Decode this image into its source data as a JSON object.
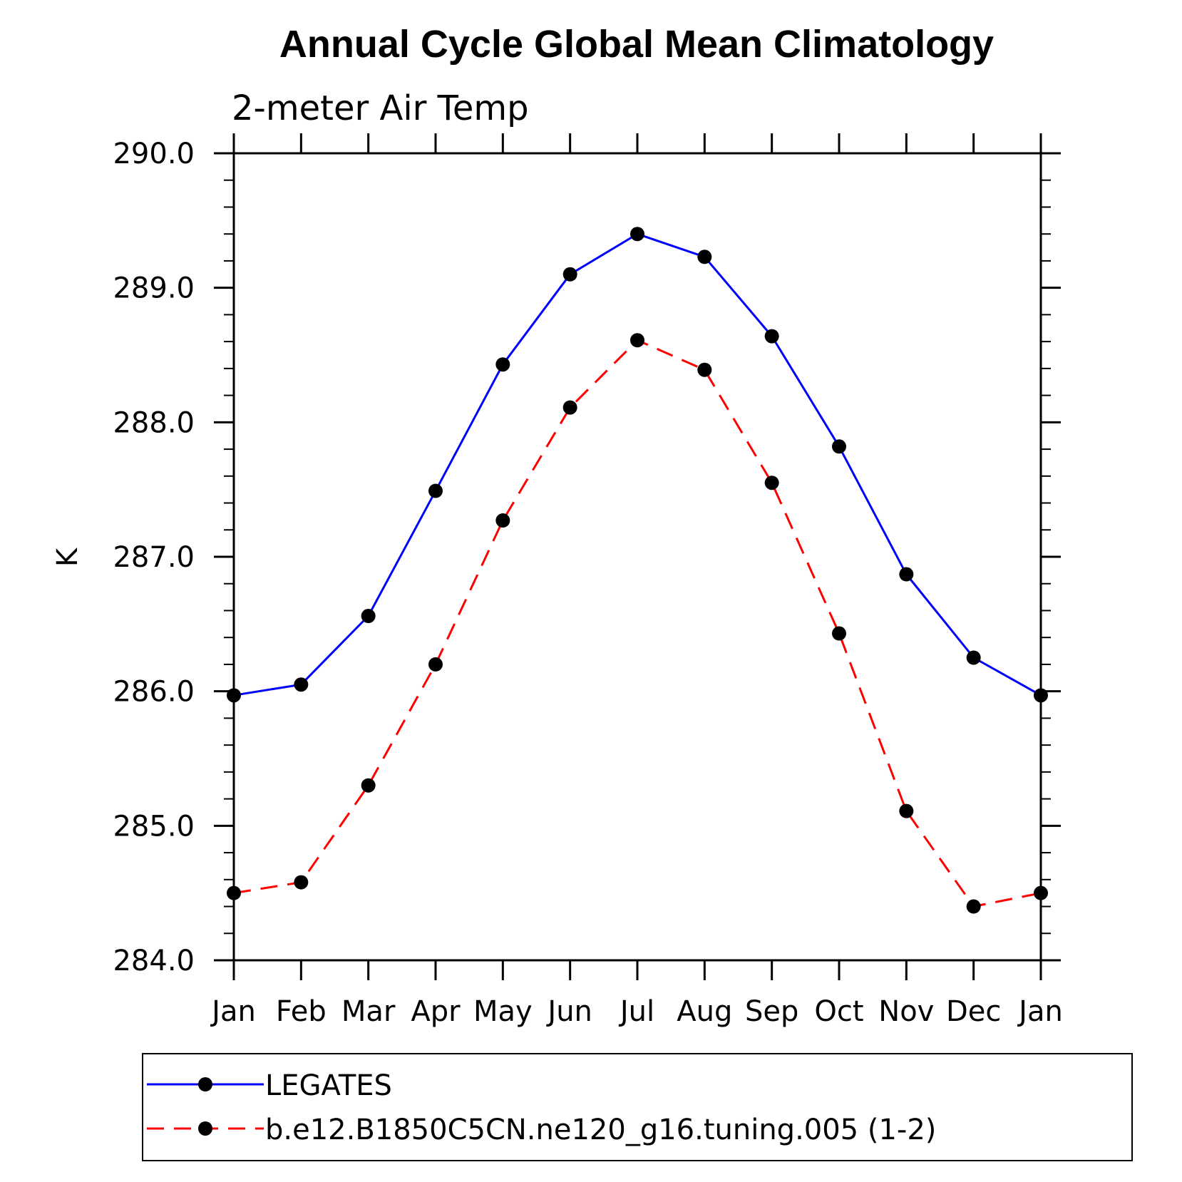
{
  "chart_data": {
    "type": "line",
    "title": "Annual Cycle Global Mean Climatology",
    "subtitle": "2-meter Air Temp",
    "ylabel": "K",
    "xlabel": "",
    "categories": [
      "Jan",
      "Feb",
      "Mar",
      "Apr",
      "May",
      "Jun",
      "Jul",
      "Aug",
      "Sep",
      "Oct",
      "Nov",
      "Dec",
      "Jan"
    ],
    "ylim": [
      284.0,
      290.0
    ],
    "yticks": [
      "284.0",
      "285.0",
      "286.0",
      "287.0",
      "288.0",
      "289.0",
      "290.0"
    ],
    "grid": false,
    "legend_position": "bottom",
    "series": [
      {
        "name": "LEGATES",
        "color": "#0000ff",
        "line_style": "solid",
        "marker": "filled-circle",
        "values": [
          285.97,
          286.05,
          286.56,
          287.49,
          288.43,
          289.1,
          289.4,
          289.23,
          288.64,
          287.82,
          286.87,
          286.25,
          285.97
        ]
      },
      {
        "name": "b.e12.B1850C5CN.ne120_g16.tuning.005 (1-2)",
        "color": "#ff0000",
        "line_style": "dashed",
        "marker": "filled-circle",
        "values": [
          284.5,
          284.58,
          285.3,
          286.2,
          287.27,
          288.11,
          288.61,
          288.39,
          287.55,
          286.43,
          285.11,
          284.4,
          284.5
        ]
      }
    ]
  }
}
